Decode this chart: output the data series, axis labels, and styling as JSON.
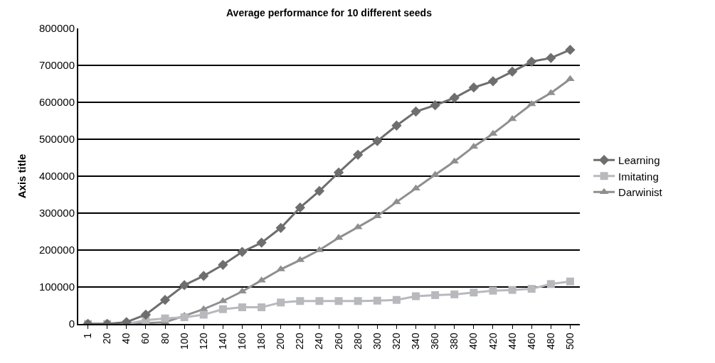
{
  "chart_data": {
    "type": "line",
    "title": "Average performance for 10 different seeds",
    "ylabel": "Axis title",
    "categories": [
      "1",
      "20",
      "40",
      "60",
      "80",
      "100",
      "120",
      "140",
      "160",
      "180",
      "200",
      "220",
      "240",
      "260",
      "280",
      "300",
      "320",
      "340",
      "360",
      "380",
      "400",
      "420",
      "440",
      "460",
      "480",
      "500"
    ],
    "series": [
      {
        "name": "Learning",
        "color": "#6e6e6e",
        "marker": "diamond",
        "values": [
          0,
          0,
          5000,
          25000,
          65000,
          105000,
          130000,
          160000,
          195000,
          220000,
          260000,
          315000,
          360000,
          410000,
          458000,
          495000,
          537000,
          575000,
          592000,
          612000,
          640000,
          657000,
          683000,
          710000,
          720000,
          742000
        ]
      },
      {
        "name": "Imitating",
        "color": "#b8b9bc",
        "marker": "square",
        "values": [
          0,
          0,
          0,
          10000,
          15000,
          18000,
          25000,
          40000,
          45000,
          45000,
          58000,
          62000,
          62000,
          62000,
          62000,
          63000,
          65000,
          75000,
          78000,
          80000,
          85000,
          90000,
          92000,
          95000,
          108000,
          115000
        ]
      },
      {
        "name": "Darwinist",
        "color": "#8f8f8f",
        "marker": "triangle",
        "values": [
          0,
          0,
          0,
          2000,
          5000,
          22000,
          40000,
          62000,
          88000,
          118000,
          148000,
          173000,
          200000,
          233000,
          262000,
          292000,
          330000,
          367000,
          404000,
          440000,
          480000,
          515000,
          555000,
          595000,
          625000,
          663000
        ]
      }
    ],
    "ylim": [
      0,
      800000
    ],
    "yticks": [
      0,
      100000,
      200000,
      300000,
      400000,
      500000,
      600000,
      700000,
      800000
    ],
    "grid": "y",
    "legend": "right",
    "line_style": "solid"
  }
}
